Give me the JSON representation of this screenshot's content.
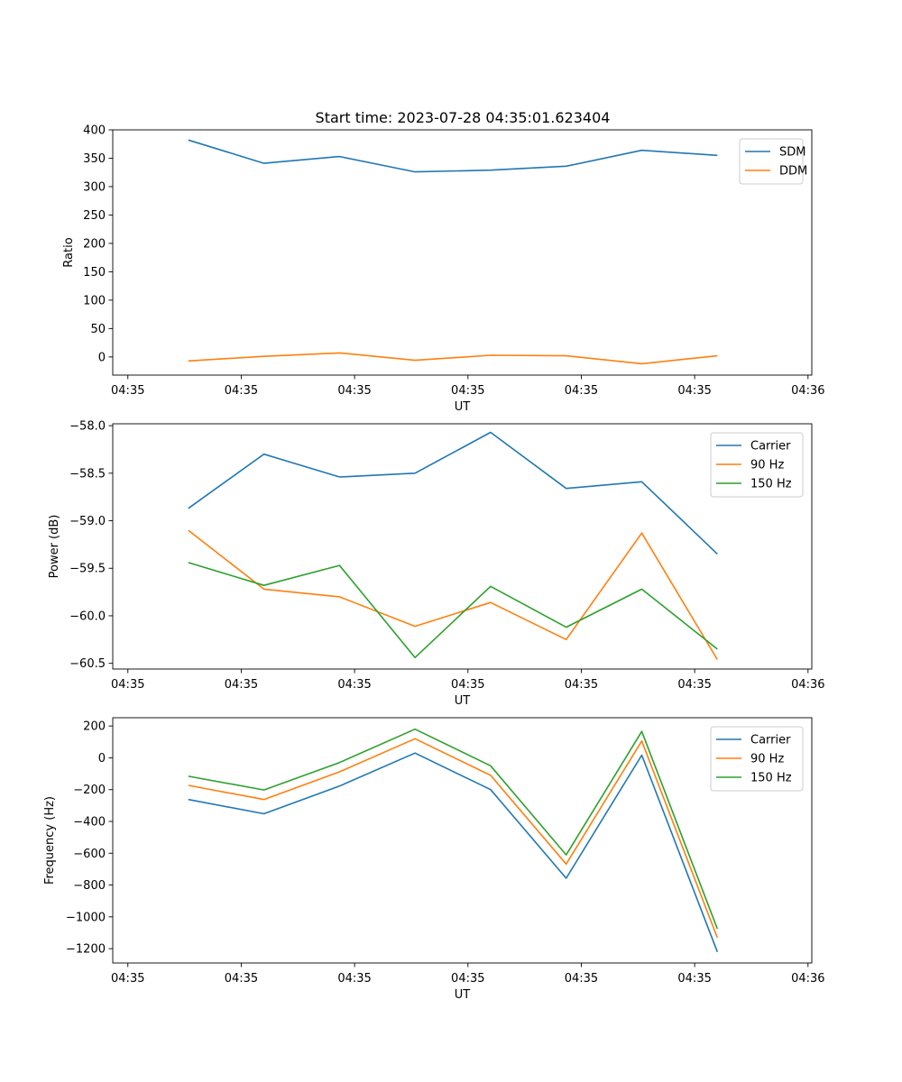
{
  "figure_title": "Start time: 2023-07-28 04:35:01.623404",
  "colors": {
    "blue": "#1f77b4",
    "orange": "#ff7f0e",
    "green": "#2ca02c"
  },
  "chart_data": [
    {
      "type": "line",
      "title": "Start time: 2023-07-28 04:35:01.623404",
      "xlabel": "UT",
      "ylabel": "Ratio",
      "x": [
        1,
        2,
        3,
        4,
        5,
        6,
        7,
        8
      ],
      "xlim": [
        0,
        9.25
      ],
      "xticks": [
        0.2,
        1.7,
        3.2,
        4.7,
        6.2,
        7.7,
        9.2
      ],
      "xtick_labels": [
        "04:35",
        "04:35",
        "04:35",
        "04:35",
        "04:35",
        "04:35",
        "04:36"
      ],
      "ylim": [
        -32,
        400
      ],
      "yticks": [
        0,
        50,
        100,
        150,
        200,
        250,
        300,
        350,
        400
      ],
      "ytick_labels": [
        "0",
        "50",
        "100",
        "150",
        "200",
        "250",
        "300",
        "350",
        "400"
      ],
      "legend": "top-right",
      "series": [
        {
          "name": "SDM",
          "color": "#1f77b4",
          "values": [
            382,
            341,
            353,
            326,
            329,
            336,
            364,
            355
          ]
        },
        {
          "name": "DDM",
          "color": "#ff7f0e",
          "values": [
            -7,
            1,
            7,
            -6,
            3,
            2,
            -12,
            2
          ]
        }
      ]
    },
    {
      "type": "line",
      "xlabel": "UT",
      "ylabel": "Power (dB)",
      "x": [
        1,
        2,
        3,
        4,
        5,
        6,
        7,
        8
      ],
      "xlim": [
        0,
        9.25
      ],
      "xticks": [
        0.2,
        1.7,
        3.2,
        4.7,
        6.2,
        7.7,
        9.2
      ],
      "xtick_labels": [
        "04:35",
        "04:35",
        "04:35",
        "04:35",
        "04:35",
        "04:35",
        "04:36"
      ],
      "ylim": [
        -60.56,
        -57.98
      ],
      "yticks": [
        -60.5,
        -60.0,
        -59.5,
        -59.0,
        -58.5,
        -58.0
      ],
      "ytick_labels": [
        "−60.5",
        "−60.0",
        "−59.5",
        "−59.0",
        "−58.5",
        "−58.0"
      ],
      "legend": "top-right",
      "series": [
        {
          "name": "Carrier",
          "color": "#1f77b4",
          "values": [
            -58.87,
            -58.3,
            -58.54,
            -58.5,
            -58.07,
            -58.66,
            -58.59,
            -59.35
          ]
        },
        {
          "name": "90 Hz",
          "color": "#ff7f0e",
          "values": [
            -59.1,
            -59.72,
            -59.8,
            -60.11,
            -59.86,
            -60.25,
            -59.13,
            -60.46
          ]
        },
        {
          "name": "150 Hz",
          "color": "#2ca02c",
          "values": [
            -59.44,
            -59.68,
            -59.47,
            -60.44,
            -59.69,
            -60.12,
            -59.72,
            -60.35
          ]
        }
      ]
    },
    {
      "type": "line",
      "xlabel": "UT",
      "ylabel": "Frequency (Hz)",
      "x": [
        1,
        2,
        3,
        4,
        5,
        6,
        7,
        8
      ],
      "xlim": [
        0,
        9.25
      ],
      "xticks": [
        0.2,
        1.7,
        3.2,
        4.7,
        6.2,
        7.7,
        9.2
      ],
      "xtick_labels": [
        "04:35",
        "04:35",
        "04:35",
        "04:35",
        "04:35",
        "04:35",
        "04:36"
      ],
      "ylim": [
        -1290,
        252
      ],
      "yticks": [
        -1200,
        -1000,
        -800,
        -600,
        -400,
        -200,
        0,
        200
      ],
      "ytick_labels": [
        "−1200",
        "−1000",
        "−800",
        "−600",
        "−400",
        "−200",
        "0",
        "200"
      ],
      "legend": "top-right",
      "series": [
        {
          "name": "Carrier",
          "color": "#1f77b4",
          "values": [
            -262,
            -352,
            -178,
            30,
            -200,
            -757,
            17,
            -1220
          ]
        },
        {
          "name": "90 Hz",
          "color": "#ff7f0e",
          "values": [
            -173,
            -262,
            -88,
            120,
            -110,
            -668,
            106,
            -1131
          ]
        },
        {
          "name": "150 Hz",
          "color": "#2ca02c",
          "values": [
            -116,
            -202,
            -30,
            180,
            -50,
            -610,
            166,
            -1075
          ]
        }
      ]
    }
  ]
}
